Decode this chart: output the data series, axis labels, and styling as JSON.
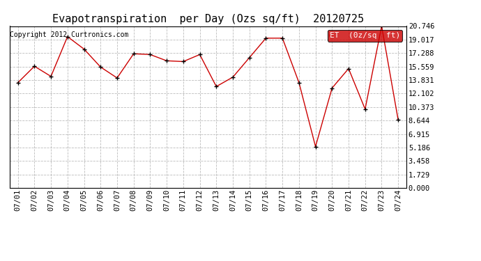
{
  "title": "Evapotranspiration  per Day (Ozs sq/ft)  20120725",
  "copyright_text": "Copyright 2012 Curtronics.com",
  "legend_label": "ET  (0z/sq  ft)",
  "x_labels": [
    "07/01",
    "07/02",
    "07/03",
    "07/04",
    "07/05",
    "07/06",
    "07/07",
    "07/08",
    "07/09",
    "07/10",
    "07/11",
    "07/12",
    "07/13",
    "07/14",
    "07/15",
    "07/16",
    "07/17",
    "07/18",
    "07/19",
    "07/20",
    "07/21",
    "07/22",
    "07/23",
    "07/24"
  ],
  "y_values": [
    13.5,
    15.6,
    14.3,
    19.4,
    17.8,
    15.5,
    14.1,
    17.2,
    17.1,
    16.3,
    16.2,
    17.1,
    13.0,
    14.2,
    16.7,
    19.2,
    19.2,
    13.5,
    5.3,
    12.8,
    15.3,
    10.1,
    20.746,
    8.7
  ],
  "y_ticks": [
    0.0,
    1.729,
    3.458,
    5.186,
    6.915,
    8.644,
    10.373,
    12.102,
    13.831,
    15.559,
    17.288,
    19.017,
    20.746
  ],
  "y_min": 0.0,
  "y_max": 20.746,
  "line_color": "#cc0000",
  "marker_color": "#000000",
  "bg_color": "#ffffff",
  "grid_color": "#bbbbbb",
  "legend_bg": "#cc0000",
  "legend_text_color": "#ffffff",
  "title_fontsize": 11,
  "copyright_fontsize": 7,
  "tick_fontsize": 7.5,
  "legend_fontsize": 8
}
